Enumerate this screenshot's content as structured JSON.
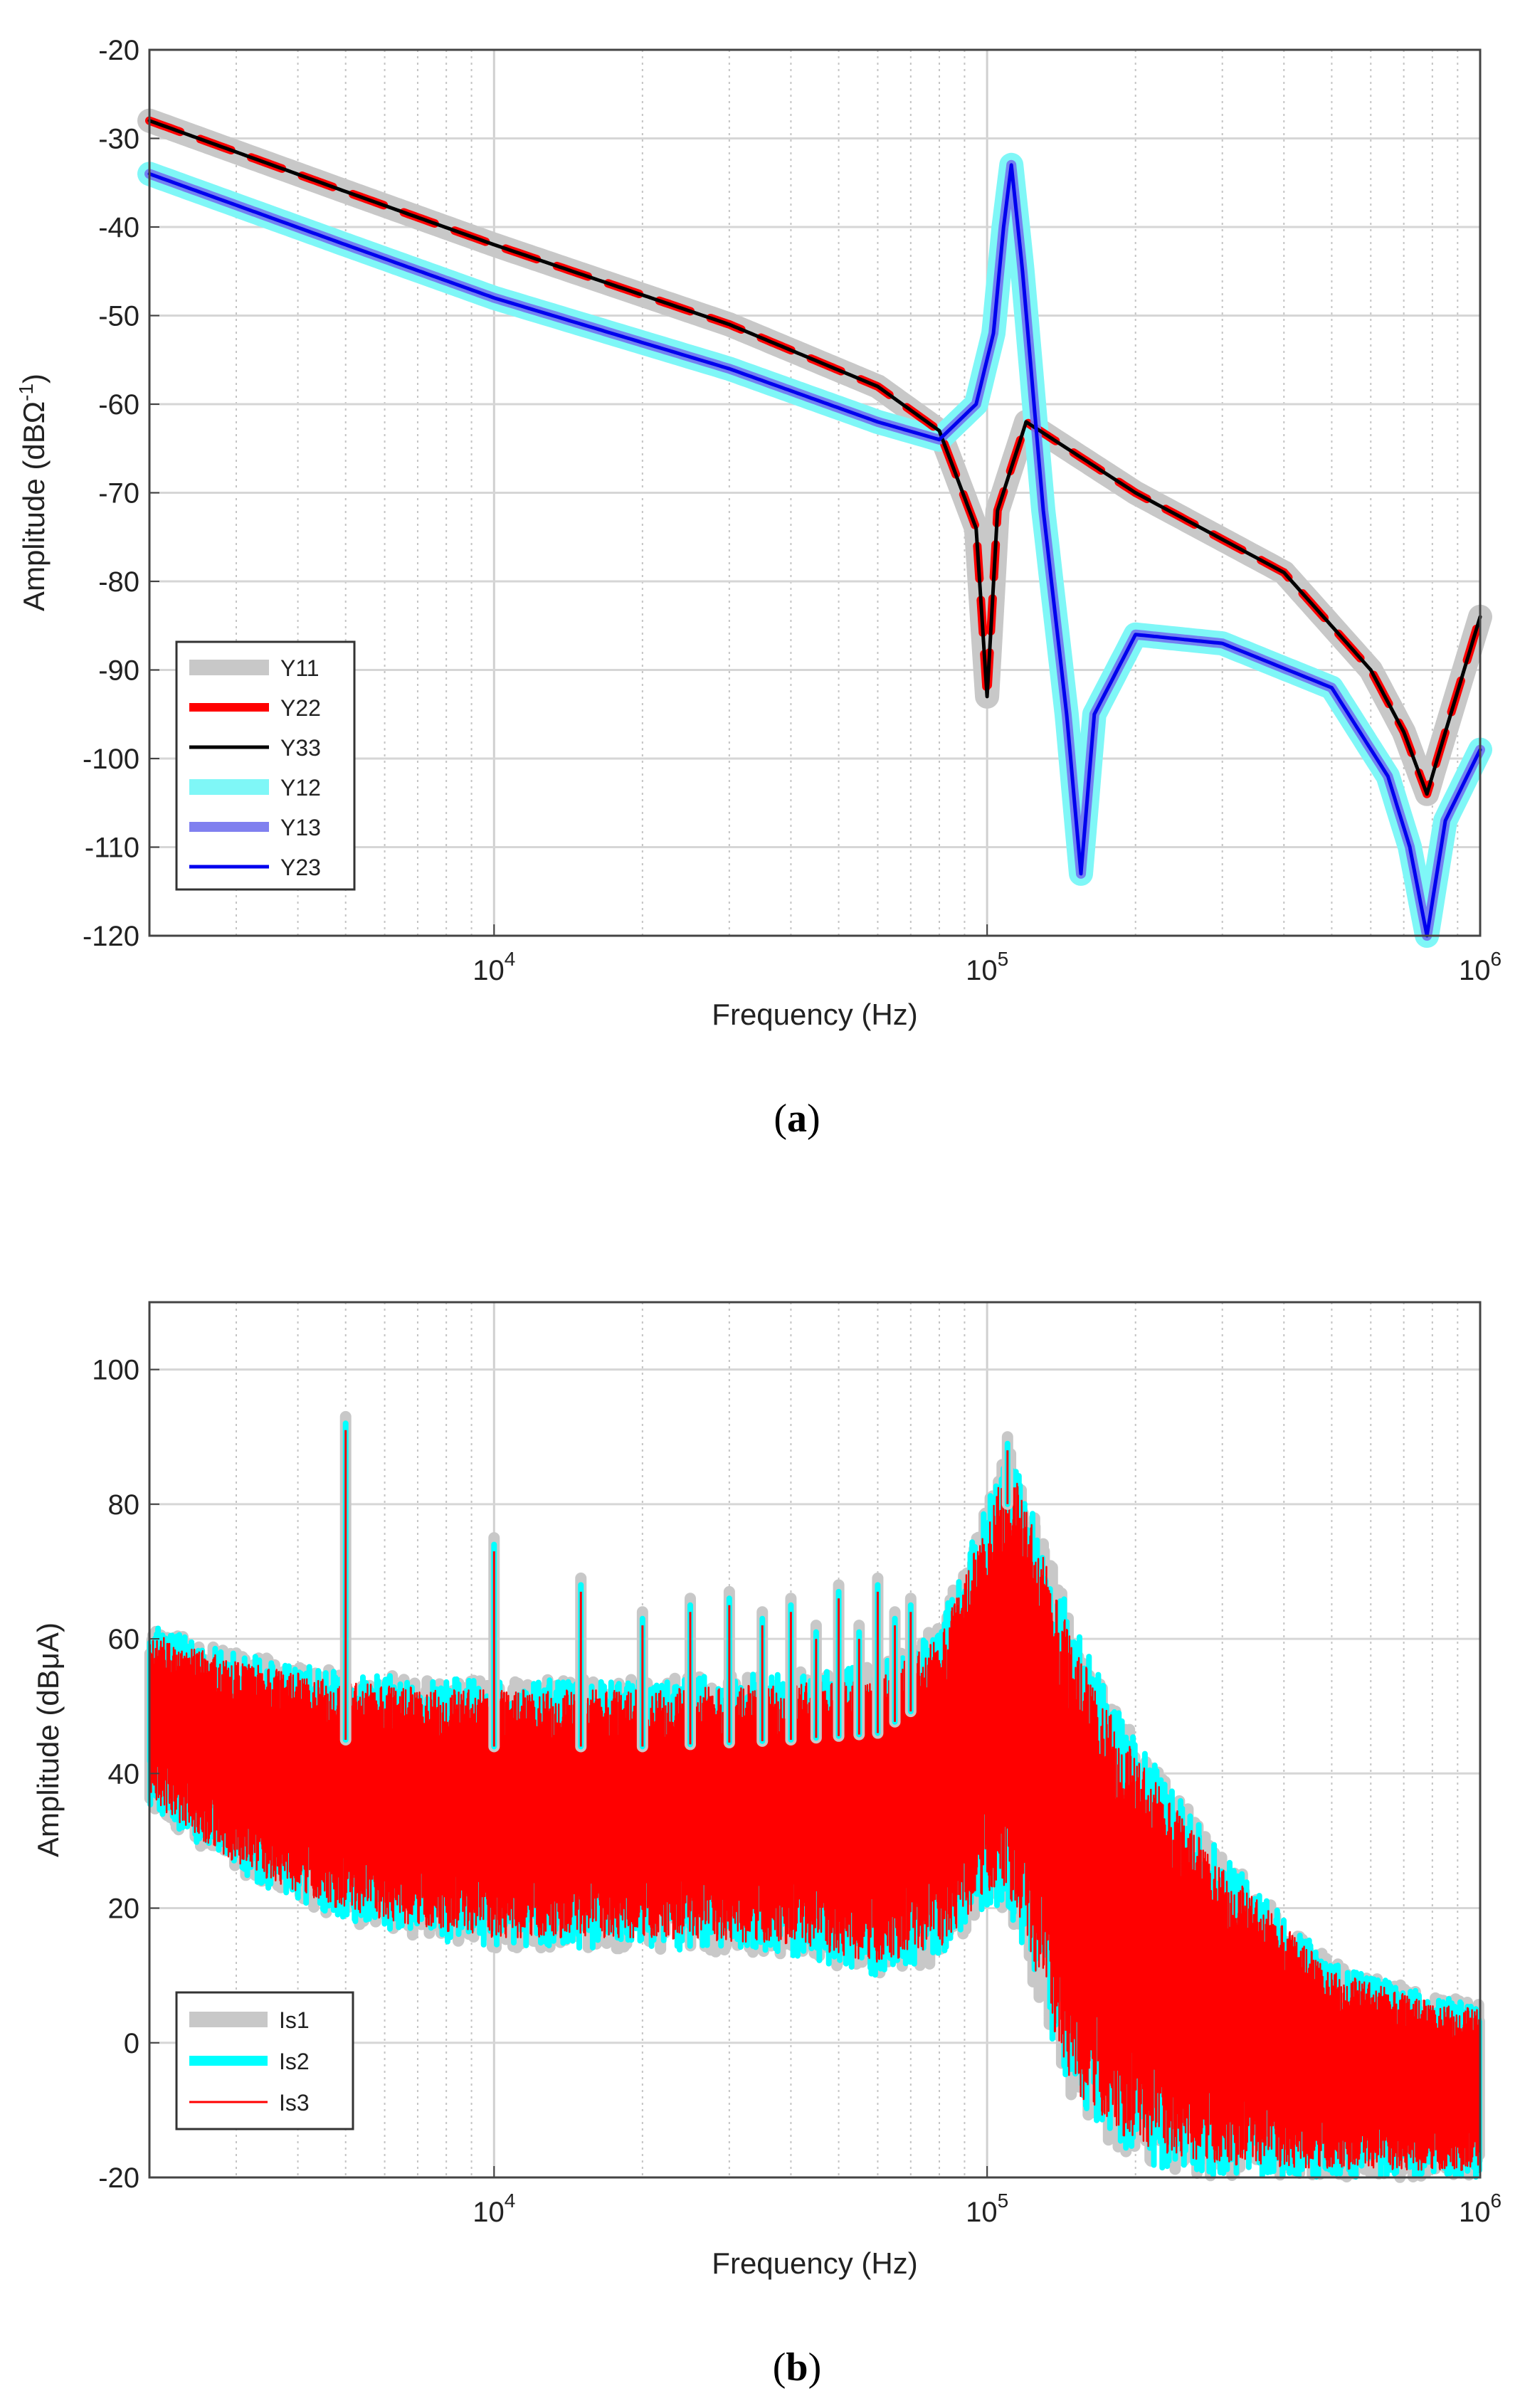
{
  "chart_data": [
    {
      "id": "a",
      "type": "line",
      "caption": "a",
      "xlabel": "Frequency (Hz)",
      "ylabel": "Amplitude (dBΩ",
      "ylabel_sup": "-1",
      "ylabel_close": ")",
      "x_scale": "log",
      "xlim": [
        2000,
        1000000
      ],
      "ylim": [
        -120,
        -20
      ],
      "yticks": [
        "-20",
        "-30",
        "-40",
        "-50",
        "-60",
        "-70",
        "-80",
        "-90",
        "-100",
        "-110",
        "-120"
      ],
      "xticks": [
        {
          "base": "10",
          "exp": "4",
          "value": 10000
        },
        {
          "base": "10",
          "exp": "5",
          "value": 100000
        },
        {
          "base": "10",
          "exp": "6",
          "value": 1000000
        }
      ],
      "grid": true,
      "legend_position": "bottom-left",
      "series": [
        {
          "name": "Y11",
          "color": "#c8c8c8",
          "x": [
            2000,
            5000,
            10000,
            30000,
            60000,
            80000,
            95000,
            100000,
            105000,
            120000,
            200000,
            400000,
            600000,
            700000,
            780000,
            850000,
            1000000
          ],
          "values": [
            -28,
            -36,
            -42,
            -51,
            -58,
            -63,
            -74,
            -93,
            -72,
            -62,
            -70,
            -79,
            -90,
            -97,
            -104,
            -97,
            -84
          ]
        },
        {
          "name": "Y22",
          "color": "#ff0000",
          "dash": true,
          "x": [
            2000,
            5000,
            10000,
            30000,
            60000,
            80000,
            95000,
            100000,
            105000,
            120000,
            200000,
            400000,
            600000,
            700000,
            780000,
            850000,
            1000000
          ],
          "values": [
            -28,
            -36,
            -42,
            -51,
            -58,
            -63,
            -74,
            -93,
            -72,
            -62,
            -70,
            -79,
            -90,
            -97,
            -104,
            -97,
            -84
          ]
        },
        {
          "name": "Y33",
          "color": "#000000",
          "x": [
            2000,
            5000,
            10000,
            30000,
            60000,
            80000,
            95000,
            100000,
            105000,
            120000,
            200000,
            400000,
            600000,
            700000,
            780000,
            850000,
            1000000
          ],
          "values": [
            -28,
            -36,
            -42,
            -51,
            -58,
            -63,
            -74,
            -93,
            -72,
            -62,
            -70,
            -79,
            -90,
            -97,
            -104,
            -97,
            -84
          ]
        },
        {
          "name": "Y12",
          "color": "#7ff7f7",
          "x": [
            2000,
            5000,
            10000,
            30000,
            60000,
            80000,
            95000,
            103000,
            108000,
            112000,
            118000,
            130000,
            145000,
            155000,
            165000,
            200000,
            300000,
            500000,
            650000,
            720000,
            780000,
            850000,
            1000000
          ],
          "values": [
            -34,
            -42,
            -48,
            -56,
            -62,
            -64,
            -60,
            -52,
            -40,
            -33,
            -45,
            -72,
            -95,
            -113,
            -95,
            -86,
            -87,
            -92,
            -102,
            -110,
            -120,
            -107,
            -99
          ]
        },
        {
          "name": "Y13",
          "color": "#7373ee",
          "x": [
            2000,
            5000,
            10000,
            30000,
            60000,
            80000,
            95000,
            103000,
            108000,
            112000,
            118000,
            130000,
            145000,
            155000,
            165000,
            200000,
            300000,
            500000,
            650000,
            720000,
            780000,
            850000,
            1000000
          ],
          "values": [
            -34,
            -42,
            -48,
            -56,
            -62,
            -64,
            -60,
            -52,
            -40,
            -33,
            -45,
            -72,
            -95,
            -113,
            -95,
            -86,
            -87,
            -92,
            -102,
            -110,
            -120,
            -107,
            -99
          ]
        },
        {
          "name": "Y23",
          "color": "#0000ee",
          "x": [
            2000,
            5000,
            10000,
            30000,
            60000,
            80000,
            95000,
            103000,
            108000,
            112000,
            118000,
            130000,
            145000,
            155000,
            165000,
            200000,
            300000,
            500000,
            650000,
            720000,
            780000,
            850000,
            1000000
          ],
          "values": [
            -34,
            -42,
            -48,
            -56,
            -62,
            -64,
            -60,
            -52,
            -40,
            -33,
            -45,
            -72,
            -95,
            -113,
            -95,
            -86,
            -87,
            -92,
            -102,
            -110,
            -120,
            -107,
            -99
          ]
        }
      ]
    },
    {
      "id": "b",
      "type": "line",
      "caption": "b",
      "xlabel": "Frequency (Hz)",
      "ylabel": "Amplitude (dBμA)",
      "x_scale": "log",
      "xlim": [
        2000,
        1000000
      ],
      "ylim": [
        -20,
        110
      ],
      "yticks": [
        "100",
        "80",
        "60",
        "40",
        "20",
        "0",
        "-20"
      ],
      "xticks": [
        {
          "base": "10",
          "exp": "4",
          "value": 10000
        },
        {
          "base": "10",
          "exp": "5",
          "value": 100000
        },
        {
          "base": "10",
          "exp": "6",
          "value": 1000000
        }
      ],
      "grid": true,
      "legend_position": "bottom-left",
      "envelope": {
        "x": [
          2000,
          3000,
          5000,
          8000,
          10000,
          20000,
          40000,
          60000,
          80000,
          100000,
          110000,
          150000,
          200000,
          300000,
          500000,
          800000,
          1000000
        ],
        "upper": [
          62,
          58,
          55,
          54,
          54,
          54,
          55,
          56,
          62,
          80,
          90,
          62,
          45,
          28,
          12,
          7,
          6
        ],
        "lower": [
          35,
          25,
          18,
          15,
          14,
          14,
          13,
          10,
          12,
          20,
          20,
          -10,
          -18,
          -20,
          -20,
          -20,
          -20
        ]
      },
      "peaks": [
        {
          "x": 5000,
          "value": 93
        },
        {
          "x": 10000,
          "value": 75
        },
        {
          "x": 15000,
          "value": 69
        },
        {
          "x": 20000,
          "value": 64
        },
        {
          "x": 25000,
          "value": 66
        },
        {
          "x": 30000,
          "value": 67
        },
        {
          "x": 35000,
          "value": 64
        },
        {
          "x": 40000,
          "value": 66
        },
        {
          "x": 45000,
          "value": 62
        },
        {
          "x": 50000,
          "value": 68
        },
        {
          "x": 55000,
          "value": 62
        },
        {
          "x": 60000,
          "value": 69
        },
        {
          "x": 65000,
          "value": 64
        },
        {
          "x": 70000,
          "value": 66
        },
        {
          "x": 110000,
          "value": 90
        }
      ],
      "series": [
        {
          "name": "Is1",
          "color": "#c8c8c8"
        },
        {
          "name": "Is2",
          "color": "#00ffff"
        },
        {
          "name": "Is3",
          "color": "#ff0000"
        }
      ]
    }
  ]
}
